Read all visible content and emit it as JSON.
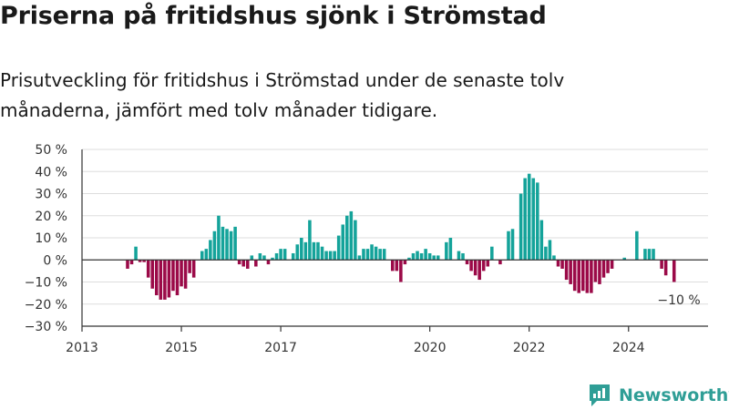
{
  "header": {
    "title": "Priserna på fritidshus sjönk i Strömstad",
    "subtitle": "Prisutveckling för fritidshus i Strömstad under de senaste tolv månaderna, jämfört med tolv månader tidigare."
  },
  "brand": {
    "name": "Newsworthy",
    "icon": "newsworthy-logo-icon",
    "color": "#2f9e96"
  },
  "colors": {
    "positive": "#14a39a",
    "negative": "#9b0a48",
    "grid": "#dddddd",
    "axis": "#333333"
  },
  "chart_data": {
    "type": "bar",
    "title": "Priserna på fritidshus sjönk i Strömstad",
    "subtitle": "Prisutveckling för fritidshus i Strömstad under de senaste tolv månaderna, jämfört med tolv månader tidigare.",
    "ylim": [
      -30,
      50
    ],
    "y_ticks": [
      50,
      40,
      30,
      20,
      10,
      0,
      -10,
      -20,
      -30
    ],
    "y_tick_labels": [
      "50 %",
      "40 %",
      "30 %",
      "20 %",
      "10 %",
      "0 %",
      "−10 %",
      "−20 %",
      "−30 %"
    ],
    "x_ticks": [
      2013,
      2015,
      2017,
      2020,
      2022,
      2024
    ],
    "x_tick_labels": [
      "2013",
      "2015",
      "2017",
      "2020",
      "2022",
      "2024"
    ],
    "xlim": [
      2013,
      2025.6
    ],
    "grid": true,
    "legend": "none",
    "end_label": "−10 %",
    "series": [
      {
        "values": [
          {
            "x": "2013-12",
            "y": -4
          },
          {
            "x": "2014-01",
            "y": -2
          },
          {
            "x": "2014-02",
            "y": 6
          },
          {
            "x": "2014-03",
            "y": -1
          },
          {
            "x": "2014-04",
            "y": -1
          },
          {
            "x": "2014-05",
            "y": -8
          },
          {
            "x": "2014-06",
            "y": -13
          },
          {
            "x": "2014-07",
            "y": -16
          },
          {
            "x": "2014-08",
            "y": -18
          },
          {
            "x": "2014-09",
            "y": -18
          },
          {
            "x": "2014-10",
            "y": -17
          },
          {
            "x": "2014-11",
            "y": -14
          },
          {
            "x": "2014-12",
            "y": -16
          },
          {
            "x": "2015-01",
            "y": -12
          },
          {
            "x": "2015-02",
            "y": -13
          },
          {
            "x": "2015-03",
            "y": -6
          },
          {
            "x": "2015-04",
            "y": -8
          },
          {
            "x": "2015-05",
            "y": 0
          },
          {
            "x": "2015-06",
            "y": 4
          },
          {
            "x": "2015-07",
            "y": 5
          },
          {
            "x": "2015-08",
            "y": 9
          },
          {
            "x": "2015-09",
            "y": 13
          },
          {
            "x": "2015-10",
            "y": 20
          },
          {
            "x": "2015-11",
            "y": 15
          },
          {
            "x": "2015-12",
            "y": 14
          },
          {
            "x": "2016-01",
            "y": 13
          },
          {
            "x": "2016-02",
            "y": 15
          },
          {
            "x": "2016-03",
            "y": -2
          },
          {
            "x": "2016-04",
            "y": -3
          },
          {
            "x": "2016-05",
            "y": -4
          },
          {
            "x": "2016-06",
            "y": 2
          },
          {
            "x": "2016-07",
            "y": -3
          },
          {
            "x": "2016-08",
            "y": 3
          },
          {
            "x": "2016-09",
            "y": 2
          },
          {
            "x": "2016-10",
            "y": -2
          },
          {
            "x": "2016-11",
            "y": 1
          },
          {
            "x": "2016-12",
            "y": 3
          },
          {
            "x": "2017-01",
            "y": 5
          },
          {
            "x": "2017-02",
            "y": 5
          },
          {
            "x": "2017-03",
            "y": 0
          },
          {
            "x": "2017-04",
            "y": 3
          },
          {
            "x": "2017-05",
            "y": 7
          },
          {
            "x": "2017-06",
            "y": 10
          },
          {
            "x": "2017-07",
            "y": 8
          },
          {
            "x": "2017-08",
            "y": 18
          },
          {
            "x": "2017-09",
            "y": 8
          },
          {
            "x": "2017-10",
            "y": 8
          },
          {
            "x": "2017-11",
            "y": 6
          },
          {
            "x": "2017-12",
            "y": 4
          },
          {
            "x": "2018-01",
            "y": 4
          },
          {
            "x": "2018-02",
            "y": 4
          },
          {
            "x": "2018-03",
            "y": 11
          },
          {
            "x": "2018-04",
            "y": 16
          },
          {
            "x": "2018-05",
            "y": 20
          },
          {
            "x": "2018-06",
            "y": 22
          },
          {
            "x": "2018-07",
            "y": 18
          },
          {
            "x": "2018-08",
            "y": 2
          },
          {
            "x": "2018-09",
            "y": 5
          },
          {
            "x": "2018-10",
            "y": 5
          },
          {
            "x": "2018-11",
            "y": 7
          },
          {
            "x": "2018-12",
            "y": 6
          },
          {
            "x": "2019-01",
            "y": 5
          },
          {
            "x": "2019-02",
            "y": 5
          },
          {
            "x": "2019-03",
            "y": 0
          },
          {
            "x": "2019-04",
            "y": -5
          },
          {
            "x": "2019-05",
            "y": -5
          },
          {
            "x": "2019-06",
            "y": -10
          },
          {
            "x": "2019-07",
            "y": -2
          },
          {
            "x": "2019-08",
            "y": 1
          },
          {
            "x": "2019-09",
            "y": 3
          },
          {
            "x": "2019-10",
            "y": 4
          },
          {
            "x": "2019-11",
            "y": 3
          },
          {
            "x": "2019-12",
            "y": 5
          },
          {
            "x": "2020-01",
            "y": 3
          },
          {
            "x": "2020-02",
            "y": 2
          },
          {
            "x": "2020-03",
            "y": 2
          },
          {
            "x": "2020-04",
            "y": 0
          },
          {
            "x": "2020-05",
            "y": 8
          },
          {
            "x": "2020-06",
            "y": 10
          },
          {
            "x": "2020-07",
            "y": 0
          },
          {
            "x": "2020-08",
            "y": 4
          },
          {
            "x": "2020-09",
            "y": 3
          },
          {
            "x": "2020-10",
            "y": -2
          },
          {
            "x": "2020-11",
            "y": -5
          },
          {
            "x": "2020-12",
            "y": -7
          },
          {
            "x": "2021-01",
            "y": -9
          },
          {
            "x": "2021-02",
            "y": -5
          },
          {
            "x": "2021-03",
            "y": -3
          },
          {
            "x": "2021-04",
            "y": 6
          },
          {
            "x": "2021-05",
            "y": 0
          },
          {
            "x": "2021-06",
            "y": -2
          },
          {
            "x": "2021-07",
            "y": 0
          },
          {
            "x": "2021-08",
            "y": 13
          },
          {
            "x": "2021-09",
            "y": 14
          },
          {
            "x": "2021-10",
            "y": 0
          },
          {
            "x": "2021-11",
            "y": 30
          },
          {
            "x": "2021-12",
            "y": 37
          },
          {
            "x": "2022-01",
            "y": 39
          },
          {
            "x": "2022-02",
            "y": 37
          },
          {
            "x": "2022-03",
            "y": 35
          },
          {
            "x": "2022-04",
            "y": 18
          },
          {
            "x": "2022-05",
            "y": 6
          },
          {
            "x": "2022-06",
            "y": 9
          },
          {
            "x": "2022-07",
            "y": 2
          },
          {
            "x": "2022-08",
            "y": -3
          },
          {
            "x": "2022-09",
            "y": -4
          },
          {
            "x": "2022-10",
            "y": -9
          },
          {
            "x": "2022-11",
            "y": -11
          },
          {
            "x": "2022-12",
            "y": -14
          },
          {
            "x": "2023-01",
            "y": -15
          },
          {
            "x": "2023-02",
            "y": -14
          },
          {
            "x": "2023-03",
            "y": -15
          },
          {
            "x": "2023-04",
            "y": -15
          },
          {
            "x": "2023-05",
            "y": -10
          },
          {
            "x": "2023-06",
            "y": -11
          },
          {
            "x": "2023-07",
            "y": -8
          },
          {
            "x": "2023-08",
            "y": -6
          },
          {
            "x": "2023-09",
            "y": -4
          },
          {
            "x": "2023-10",
            "y": 0
          },
          {
            "x": "2023-11",
            "y": 0
          },
          {
            "x": "2023-12",
            "y": 1
          },
          {
            "x": "2024-01",
            "y": 0
          },
          {
            "x": "2024-02",
            "y": 0
          },
          {
            "x": "2024-03",
            "y": 13
          },
          {
            "x": "2024-04",
            "y": 0
          },
          {
            "x": "2024-05",
            "y": 5
          },
          {
            "x": "2024-06",
            "y": 5
          },
          {
            "x": "2024-07",
            "y": 5
          },
          {
            "x": "2024-08",
            "y": 0
          },
          {
            "x": "2024-09",
            "y": -4
          },
          {
            "x": "2024-10",
            "y": -7
          },
          {
            "x": "2024-11",
            "y": 0
          },
          {
            "x": "2024-12",
            "y": -10
          }
        ]
      }
    ]
  }
}
